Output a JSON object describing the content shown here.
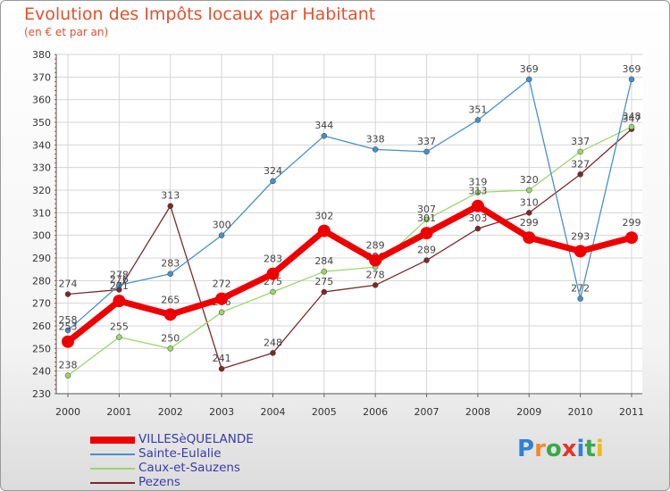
{
  "header": {
    "title": "Evolution des Impôts locaux par Habitant",
    "subtitle": "(en € et par an)"
  },
  "brand": {
    "letters": [
      "P",
      "r",
      "o",
      "x",
      "i",
      "t",
      "i"
    ],
    "colors": [
      "#2f83d6",
      "#f08a2a",
      "#3aa84a",
      "#e3362b",
      "#2f83d6",
      "#3aa84a",
      "#f2b81b"
    ]
  },
  "chart_data": {
    "type": "line",
    "title": "Evolution des Impôts locaux par Habitant",
    "subtitle": "(en € et par an)",
    "xlabel": "",
    "ylabel": "",
    "ylim": [
      230,
      380
    ],
    "yticks": [
      230,
      240,
      250,
      260,
      270,
      280,
      290,
      300,
      310,
      320,
      330,
      340,
      350,
      360,
      370,
      380
    ],
    "categories": [
      "2000",
      "2001",
      "2002",
      "2003",
      "2004",
      "2005",
      "2006",
      "2007",
      "2008",
      "2009",
      "2010",
      "2011"
    ],
    "grid": true,
    "legend": "bottom-left",
    "series": [
      {
        "name": "Pezens",
        "color": "#7a2a2a",
        "values": [
          274,
          276,
          313,
          241,
          248,
          275,
          278,
          289,
          303,
          310,
          327,
          347
        ]
      },
      {
        "name": "Caux-et-Sauzens",
        "color": "#9bd66d",
        "values": [
          238,
          255,
          250,
          266,
          275,
          284,
          286,
          307,
          319,
          320,
          337,
          348
        ]
      },
      {
        "name": "Sainte-Eulalie",
        "color": "#4a90c8",
        "values": [
          258,
          278,
          283,
          300,
          324,
          344,
          338,
          337,
          351,
          369,
          272,
          369
        ]
      },
      {
        "name": "VILLESèQUELANDE",
        "color": "#ee0000",
        "values": [
          253,
          271,
          265,
          272,
          283,
          302,
          289,
          301,
          313,
          299,
          293,
          299
        ]
      }
    ]
  }
}
